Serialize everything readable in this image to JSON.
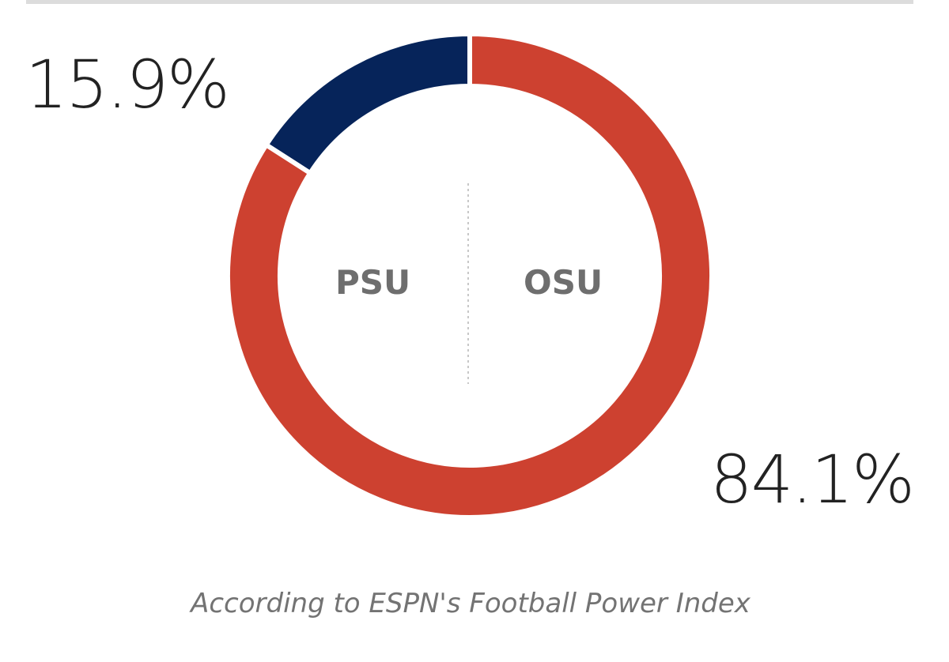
{
  "chart_data": {
    "type": "pie",
    "title": "",
    "categories": [
      "PSU",
      "OSU"
    ],
    "values": [
      15.9,
      84.1
    ],
    "value_labels": [
      "15.9%",
      "84.1%"
    ],
    "colors": [
      "#06245a",
      "#cd4130"
    ],
    "style": "donut",
    "legend": "none",
    "footnote": "According to ESPN's Football Power Index"
  }
}
